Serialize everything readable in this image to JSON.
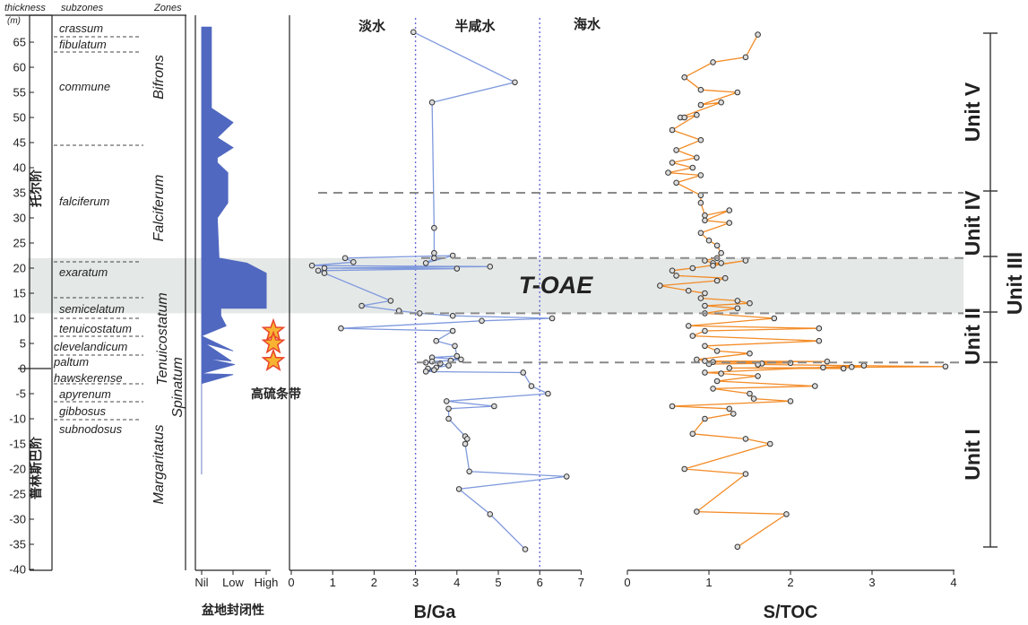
{
  "colors": {
    "blue_line": "#7f99dd",
    "blue_fill": "#5068c0",
    "orange_line": "#f38b25",
    "band_fill": "#e4e8e7",
    "dash_gray": "#8a8a8a",
    "star_fill": "#f7b331",
    "star_stroke": "#e9442b",
    "marker_fill": "#dcdcdc"
  },
  "header": {
    "thickness_label": "thickness",
    "thickness_unit": "(m)",
    "subzones_label": "subzones",
    "zones_label": "Zones"
  },
  "depth_axis": {
    "ticks": [
      65,
      60,
      55,
      50,
      45,
      40,
      35,
      30,
      25,
      20,
      15,
      10,
      5,
      0,
      -5,
      -10,
      -15,
      -20,
      -25,
      -30,
      -35,
      -40
    ]
  },
  "stages": {
    "upper": "托尔阶",
    "lower": "普林斯巴阶"
  },
  "subzones": {
    "crassum": "crassum",
    "fibulatum": "fibulatum",
    "commune": "commune",
    "falciferum": "falciferum",
    "exaratum": "exaratum",
    "semicelatum": "semicelatum",
    "tenuicostatum": "tenuicostatum",
    "clevelandicum": "clevelandicum",
    "paltum": "paltum",
    "hawskerense": "hawskerense",
    "apyrenum": "apyrenum",
    "gibbosus": "gibbosus",
    "subnodosus": "subnodosus"
  },
  "zones": {
    "bifrons": "Bifrons",
    "falciferum": "Falciferum",
    "tenuicostatum": "Tenuicostatum",
    "spinatum": "Spinatum",
    "margaritatus": "Margaritatus"
  },
  "annotations": {
    "high_sulfur_band": "高硫条带",
    "toae": "T-OAE",
    "freshwater": "淡水",
    "brackish": "半咸水",
    "seawater": "海水"
  },
  "units": [
    "Unit V",
    "Unit IV",
    "Unit III",
    "Unit II",
    "Unit I"
  ],
  "chart_data": [
    {
      "type": "area",
      "title": "",
      "xlabel": "盆地封闭性",
      "ylabel": "thickness (m)",
      "x_ticks": [
        "Nil",
        "Low",
        "High"
      ],
      "ylim": [
        -40,
        68
      ],
      "x_values": [
        0.33,
        0.33,
        0.3,
        0.95,
        0.5,
        0.95,
        0.5,
        0.5,
        0.8,
        0.8,
        0.5,
        0.55,
        1.35,
        1.9,
        1.9,
        1.35,
        0.6,
        0.6,
        0.75,
        0.05,
        0.95,
        0.15,
        0.9,
        0.15,
        1.0,
        0.05,
        0.95,
        0.05,
        0.05
      ],
      "y_values": [
        68,
        52,
        52,
        49,
        46,
        44,
        42,
        41,
        39,
        33,
        30,
        22,
        21,
        19,
        12,
        12,
        12,
        10.5,
        8.5,
        6.5,
        3.5,
        5,
        1.5,
        2,
        0.8,
        -1,
        -1.2,
        -3,
        -21
      ]
    },
    {
      "type": "line",
      "title": "",
      "xlabel": "B/Ga",
      "ylabel": "thickness (m)",
      "xlim": [
        0,
        7
      ],
      "x_ticks": [
        0,
        1,
        2,
        3,
        4,
        5,
        6,
        7
      ],
      "ylim": [
        -40,
        68
      ],
      "reference_lines_x": [
        3,
        6
      ],
      "x": [
        2.95,
        5.4,
        3.4,
        3.45,
        3.45,
        3.45,
        3.25,
        3.9,
        1.3,
        1.5,
        0.5,
        4.8,
        0.8,
        4.0,
        0.65,
        0.8,
        2.4,
        1.7,
        2.6,
        3.1,
        3.9,
        6.3,
        4.6,
        1.2,
        3.9,
        3.5,
        3.95,
        4.0,
        3.4,
        4.1,
        3.85,
        3.4,
        3.25,
        3.6,
        3.8,
        3.5,
        3.3,
        3.45,
        3.25,
        5.6,
        5.8,
        6.2,
        3.75,
        4.9,
        3.8,
        3.8,
        4.2,
        4.25,
        4.2,
        4.3,
        6.65,
        4.05,
        4.8,
        5.65
      ],
      "y": [
        67,
        57,
        53,
        28,
        23,
        22,
        21,
        22.5,
        22,
        21.2,
        20.5,
        20.3,
        20,
        19.9,
        19.5,
        19,
        13.5,
        12.5,
        11.5,
        11,
        10.5,
        10,
        9.5,
        8,
        7.5,
        5.5,
        4.5,
        2.5,
        2.2,
        1.8,
        1.6,
        1.4,
        1.2,
        1.0,
        0.6,
        0.2,
        0,
        -0.3,
        -0.6,
        -0.8,
        -3.5,
        -5,
        -6.5,
        -7.5,
        -8,
        -10,
        -13.5,
        -14,
        -15,
        -20.5,
        -21.5,
        -24,
        -29,
        -36
      ]
    },
    {
      "type": "line",
      "title": "",
      "xlabel": "S/TOC",
      "ylabel": "thickness (m)",
      "xlim": [
        0,
        4
      ],
      "x_ticks": [
        0,
        1,
        2,
        3,
        4
      ],
      "ylim": [
        -40,
        68
      ],
      "x": [
        1.6,
        1.45,
        1.05,
        0.7,
        0.9,
        1.35,
        0.9,
        1.15,
        0.65,
        0.7,
        0.85,
        0.55,
        0.9,
        0.6,
        0.85,
        0.55,
        0.8,
        0.5,
        0.9,
        0.6,
        0.9,
        0.9,
        0.95,
        1.25,
        0.95,
        1.25,
        0.9,
        1.0,
        1.1,
        1.15,
        1.1,
        0.95,
        1.05,
        1.15,
        1.05,
        1.45,
        0.8,
        0.55,
        0.6,
        1.2,
        1.1,
        0.4,
        0.75,
        0.95,
        0.9,
        1.35,
        1.5,
        0.95,
        1.35,
        0.95,
        1.8,
        0.75,
        2.35,
        0.95,
        0.8,
        2.35,
        0.95,
        1.1,
        1.5,
        0.85,
        0.95,
        2.45,
        1.05,
        2.0,
        1.0,
        1.65,
        1.6,
        3.9,
        2.4,
        1.25,
        2.65,
        2.75,
        2.9,
        0.95,
        1.15,
        1.6,
        1.1,
        2.3,
        1.05,
        1.5,
        1.55,
        2.0,
        0.55,
        1.25,
        1.3,
        0.95,
        0.8,
        1.45,
        1.75,
        0.7,
        1.45,
        0.85,
        1.95,
        1.35
      ],
      "y": [
        66.5,
        62,
        61,
        58,
        55.5,
        55,
        52.5,
        53,
        50,
        50,
        50.5,
        47.5,
        45.5,
        43.5,
        42,
        41,
        40,
        39,
        38.5,
        37,
        34.5,
        33,
        30.5,
        31.5,
        29.5,
        29,
        27,
        25.5,
        24.5,
        23,
        22,
        21.5,
        21,
        21,
        20.5,
        21.5,
        20,
        19.5,
        18.5,
        18,
        17.5,
        16.5,
        15.5,
        15,
        14,
        13.5,
        13,
        12.5,
        12,
        11,
        10,
        8.5,
        8,
        7.5,
        6.5,
        5.5,
        4.5,
        3.5,
        3.0,
        1.8,
        1.5,
        1.4,
        1.3,
        1.1,
        0.9,
        1.0,
        0.8,
        0.4,
        0.2,
        0.1,
        0,
        0.3,
        0.6,
        -0.8,
        -1.0,
        -1.5,
        -2.5,
        -3.5,
        -4.0,
        -5.0,
        -6.0,
        -6.5,
        -7.5,
        -8.0,
        -9.0,
        -10.0,
        -13.0,
        -14.0,
        -15.0,
        -20.0,
        -21.0,
        -28.5,
        -29.0,
        -35.5
      ]
    }
  ],
  "high_sulfur_stars_depths": [
    7.5,
    5,
    1.5
  ]
}
